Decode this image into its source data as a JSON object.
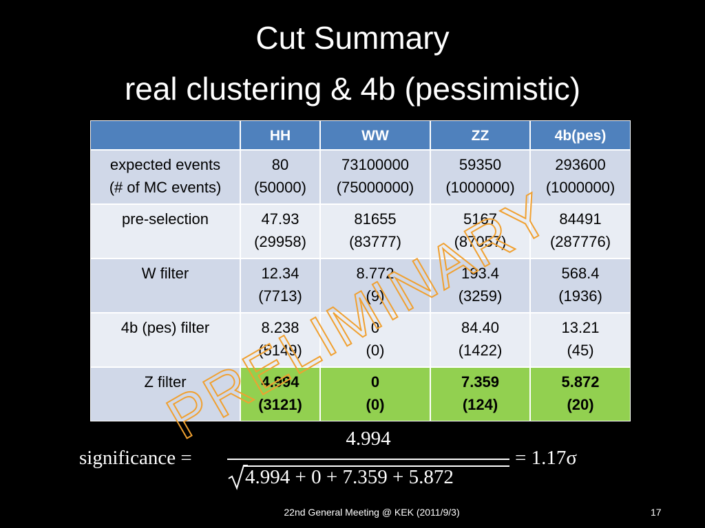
{
  "slide": {
    "title": [
      "Cut Summary",
      "real clustering & 4b (pessimistic)"
    ],
    "table": {
      "header": [
        "HH",
        "WW",
        "ZZ",
        "4b(pes)"
      ],
      "rows": [
        {
          "label": [
            "expected events",
            "(# of MC events)"
          ],
          "cells": [
            [
              "80",
              "(50000)"
            ],
            [
              "73100000",
              "(75000000)"
            ],
            [
              "59350",
              "(1000000)"
            ],
            [
              "293600",
              "(1000000)"
            ]
          ]
        },
        {
          "label": [
            "pre-selection"
          ],
          "cells": [
            [
              "47.93",
              "(29958)"
            ],
            [
              "81655",
              "(83777)"
            ],
            [
              "5167",
              "(87057)"
            ],
            [
              "84491",
              "(287776)"
            ]
          ]
        },
        {
          "label": [
            "W filter"
          ],
          "cells": [
            [
              "12.34",
              "(7713)"
            ],
            [
              "8.772",
              "(9)"
            ],
            [
              "193.4",
              "(3259)"
            ],
            [
              "568.4",
              "(1936)"
            ]
          ]
        },
        {
          "label": [
            "4b (pes) filter"
          ],
          "cells": [
            [
              "8.238",
              "(5149)"
            ],
            [
              "0",
              "(0)"
            ],
            [
              "84.40",
              "(1422)"
            ],
            [
              "13.21",
              "(45)"
            ]
          ]
        },
        {
          "label": [
            "Z filter"
          ],
          "cells": [
            [
              "4.994",
              "(3121)"
            ],
            [
              "0",
              "(0)"
            ],
            [
              "7.359",
              "(124)"
            ],
            [
              "5.872",
              "(20)"
            ]
          ],
          "highlight": true
        }
      ]
    },
    "watermark": "PRELIMINARY",
    "formula": {
      "lhs": "significance =",
      "numerator": "4.994",
      "denominator": "4.994 + 0 + 7.359 + 5.872",
      "result": "= 1.17σ"
    },
    "footer": "22nd General Meeting @ KEK (2011/9/3)",
    "page_number": "17"
  }
}
